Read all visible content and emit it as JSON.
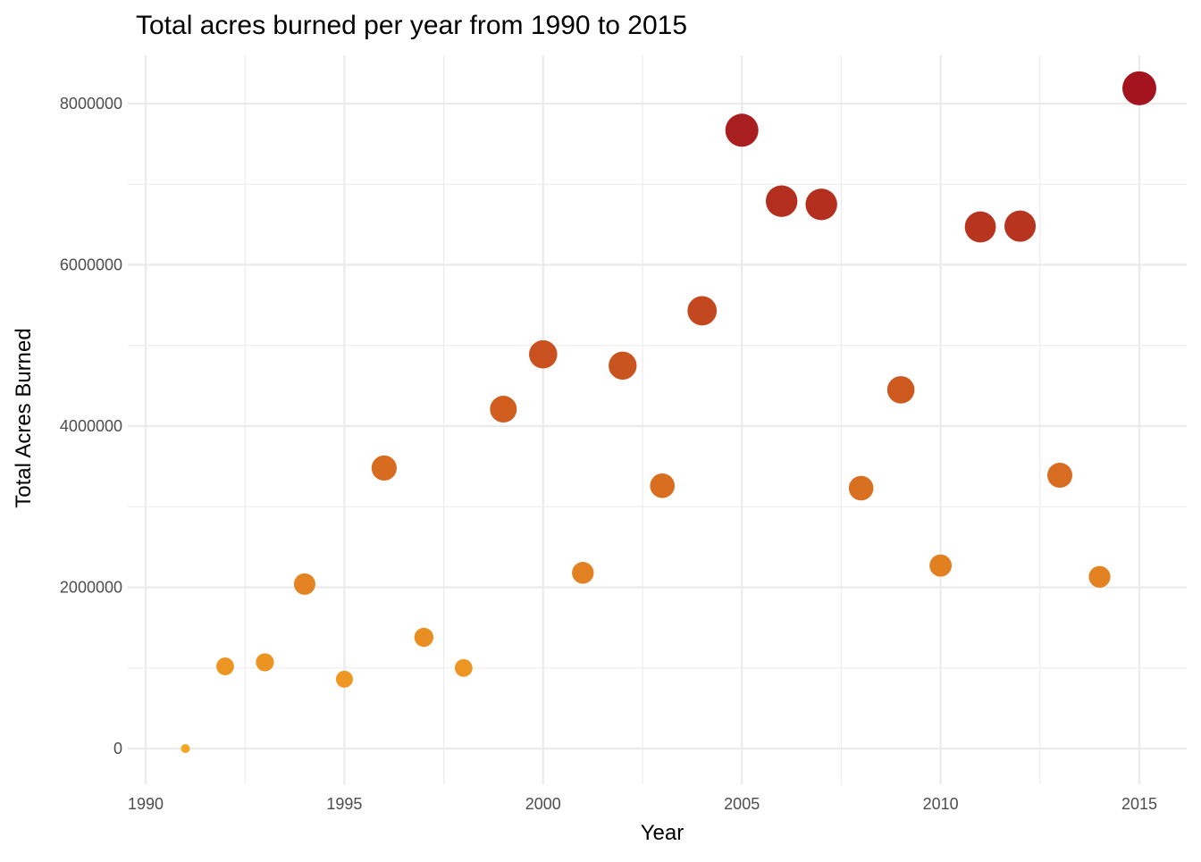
{
  "chart_data": {
    "type": "scatter",
    "title": "Total acres burned per year from 1990 to 2015",
    "xlabel": "Year",
    "ylabel": "Total Acres Burned",
    "xlim": [
      1990,
      2015
    ],
    "ylim": [
      0,
      8000000
    ],
    "x_ticks": [
      "1990",
      "1995",
      "2000",
      "2005",
      "2010",
      "2015"
    ],
    "y_ticks": [
      "0",
      "2000000",
      "4000000",
      "6000000",
      "8000000"
    ],
    "grid": true,
    "legend": "none",
    "color_scale": {
      "low": "#f5a623",
      "mid": "#d2601f",
      "high": "#a3141e"
    },
    "points": [
      {
        "x": 1991,
        "y": 0
      },
      {
        "x": 1992,
        "y": 1020000
      },
      {
        "x": 1993,
        "y": 1070000
      },
      {
        "x": 1994,
        "y": 2040000
      },
      {
        "x": 1995,
        "y": 860000
      },
      {
        "x": 1996,
        "y": 3480000
      },
      {
        "x": 1997,
        "y": 1380000
      },
      {
        "x": 1998,
        "y": 1000000
      },
      {
        "x": 1999,
        "y": 4210000
      },
      {
        "x": 2000,
        "y": 4890000
      },
      {
        "x": 2001,
        "y": 2180000
      },
      {
        "x": 2002,
        "y": 4750000
      },
      {
        "x": 2003,
        "y": 3260000
      },
      {
        "x": 2004,
        "y": 5430000
      },
      {
        "x": 2005,
        "y": 7670000
      },
      {
        "x": 2006,
        "y": 6790000
      },
      {
        "x": 2007,
        "y": 6750000
      },
      {
        "x": 2008,
        "y": 3230000
      },
      {
        "x": 2009,
        "y": 4450000
      },
      {
        "x": 2010,
        "y": 2270000
      },
      {
        "x": 2011,
        "y": 6470000
      },
      {
        "x": 2012,
        "y": 6480000
      },
      {
        "x": 2013,
        "y": 3390000
      },
      {
        "x": 2014,
        "y": 2130000
      },
      {
        "x": 2015,
        "y": 8190000
      }
    ]
  }
}
